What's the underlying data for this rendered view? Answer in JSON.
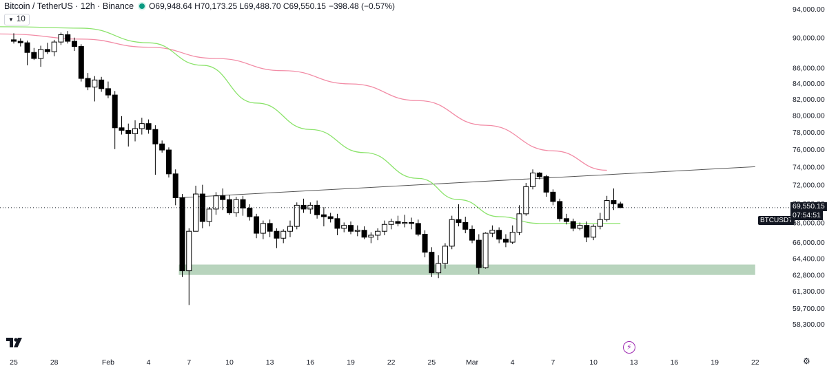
{
  "header": {
    "symbol": "Bitcoin / TetherUS · 12h · Binance",
    "ohlc": "O69,948.64 H70,173.25 L69,488.70 C69,550.15",
    "change": "−398.48 (−0.57%)"
  },
  "indicator": {
    "label": "10"
  },
  "price_tag": {
    "value": "69,550.15",
    "countdown": "07:54:51",
    "symbol": "BTCUSDT"
  },
  "colors": {
    "up_body": "#ffffff",
    "down_body": "#000000",
    "wick": "#000000",
    "ma_fast": "#8be36b",
    "ma_slow": "#f28ca6",
    "zone": "#b8d4bd",
    "trendline": "#555555"
  },
  "chart_data": {
    "type": "candlestick",
    "interval": "12h",
    "y_axis_labels": [
      94000,
      90000,
      86000,
      84000,
      82000,
      80000,
      78000,
      76000,
      74000,
      72000,
      70000,
      68000,
      66000,
      64400,
      62800,
      61300,
      59700,
      58300
    ],
    "y_scale": "log",
    "x_axis_labels": [
      "25",
      "28",
      "Feb",
      "4",
      "7",
      "10",
      "13",
      "16",
      "19",
      "22",
      "25",
      "Mar",
      "4",
      "7",
      "10",
      "13",
      "16",
      "19",
      "22"
    ],
    "x_label_bar_index": [
      0,
      6,
      14,
      20,
      26,
      32,
      38,
      44,
      50,
      56,
      62,
      68,
      74,
      80,
      86,
      92,
      98,
      104,
      110
    ],
    "candles": [
      {
        "o": 89700,
        "h": 90600,
        "l": 89200,
        "c": 89500
      },
      {
        "o": 89500,
        "h": 89900,
        "l": 88800,
        "c": 89300
      },
      {
        "o": 89300,
        "h": 89600,
        "l": 86300,
        "c": 88000
      },
      {
        "o": 88000,
        "h": 88600,
        "l": 87000,
        "c": 87200
      },
      {
        "o": 87200,
        "h": 88900,
        "l": 86100,
        "c": 88400
      },
      {
        "o": 88400,
        "h": 89300,
        "l": 87800,
        "c": 88100
      },
      {
        "o": 88100,
        "h": 89700,
        "l": 87500,
        "c": 89400
      },
      {
        "o": 89400,
        "h": 90700,
        "l": 89000,
        "c": 90400
      },
      {
        "o": 90400,
        "h": 90900,
        "l": 89200,
        "c": 89500
      },
      {
        "o": 89500,
        "h": 90000,
        "l": 88200,
        "c": 88800
      },
      {
        "o": 88800,
        "h": 89100,
        "l": 84200,
        "c": 84600
      },
      {
        "o": 84600,
        "h": 85300,
        "l": 83100,
        "c": 83500
      },
      {
        "o": 83500,
        "h": 84900,
        "l": 81700,
        "c": 84400
      },
      {
        "o": 84400,
        "h": 84800,
        "l": 82900,
        "c": 83300
      },
      {
        "o": 83300,
        "h": 84200,
        "l": 82100,
        "c": 82500
      },
      {
        "o": 82500,
        "h": 83000,
        "l": 76000,
        "c": 78500
      },
      {
        "o": 78500,
        "h": 79900,
        "l": 77700,
        "c": 78200
      },
      {
        "o": 78200,
        "h": 79000,
        "l": 76300,
        "c": 77800
      },
      {
        "o": 77800,
        "h": 79400,
        "l": 76900,
        "c": 78400
      },
      {
        "o": 78400,
        "h": 79700,
        "l": 77700,
        "c": 79000
      },
      {
        "o": 79000,
        "h": 79500,
        "l": 77800,
        "c": 78300
      },
      {
        "o": 78300,
        "h": 78800,
        "l": 73100,
        "c": 76600
      },
      {
        "o": 76600,
        "h": 77000,
        "l": 75600,
        "c": 75900
      },
      {
        "o": 75900,
        "h": 76200,
        "l": 72800,
        "c": 73200
      },
      {
        "o": 73200,
        "h": 73700,
        "l": 69800,
        "c": 70600
      },
      {
        "o": 70600,
        "h": 71000,
        "l": 62600,
        "c": 63200
      },
      {
        "o": 63200,
        "h": 67400,
        "l": 60000,
        "c": 67100
      },
      {
        "o": 67100,
        "h": 71900,
        "l": 67100,
        "c": 71000
      },
      {
        "o": 71000,
        "h": 72000,
        "l": 67400,
        "c": 68100
      },
      {
        "o": 68100,
        "h": 69600,
        "l": 67600,
        "c": 69400
      },
      {
        "o": 69400,
        "h": 71200,
        "l": 68800,
        "c": 70800
      },
      {
        "o": 70800,
        "h": 71600,
        "l": 69300,
        "c": 70400
      },
      {
        "o": 70400,
        "h": 70900,
        "l": 68800,
        "c": 69000
      },
      {
        "o": 69000,
        "h": 70700,
        "l": 68600,
        "c": 70400
      },
      {
        "o": 70400,
        "h": 70800,
        "l": 68700,
        "c": 69500
      },
      {
        "o": 69500,
        "h": 69900,
        "l": 68200,
        "c": 68600
      },
      {
        "o": 68600,
        "h": 68900,
        "l": 66400,
        "c": 66900
      },
      {
        "o": 66900,
        "h": 68200,
        "l": 66300,
        "c": 67900
      },
      {
        "o": 67900,
        "h": 68300,
        "l": 66500,
        "c": 67100
      },
      {
        "o": 67100,
        "h": 67400,
        "l": 65400,
        "c": 66400
      },
      {
        "o": 66400,
        "h": 67300,
        "l": 65900,
        "c": 67100
      },
      {
        "o": 67100,
        "h": 68200,
        "l": 66500,
        "c": 67600
      },
      {
        "o": 67600,
        "h": 70100,
        "l": 67300,
        "c": 69800
      },
      {
        "o": 69800,
        "h": 70500,
        "l": 69000,
        "c": 69400
      },
      {
        "o": 69400,
        "h": 70100,
        "l": 68900,
        "c": 69800
      },
      {
        "o": 69800,
        "h": 70300,
        "l": 68400,
        "c": 68800
      },
      {
        "o": 68800,
        "h": 69600,
        "l": 67600,
        "c": 68600
      },
      {
        "o": 68600,
        "h": 69000,
        "l": 68000,
        "c": 68400
      },
      {
        "o": 68400,
        "h": 68900,
        "l": 66700,
        "c": 67400
      },
      {
        "o": 67400,
        "h": 68000,
        "l": 67000,
        "c": 67700
      },
      {
        "o": 67700,
        "h": 68100,
        "l": 66800,
        "c": 67100
      },
      {
        "o": 67100,
        "h": 67700,
        "l": 66600,
        "c": 67200
      },
      {
        "o": 67200,
        "h": 67600,
        "l": 66300,
        "c": 66500
      },
      {
        "o": 66500,
        "h": 67000,
        "l": 65900,
        "c": 66700
      },
      {
        "o": 66700,
        "h": 67400,
        "l": 66200,
        "c": 67100
      },
      {
        "o": 67100,
        "h": 68200,
        "l": 66700,
        "c": 67800
      },
      {
        "o": 67800,
        "h": 68400,
        "l": 67300,
        "c": 68100
      },
      {
        "o": 68100,
        "h": 68700,
        "l": 67600,
        "c": 67900
      },
      {
        "o": 67900,
        "h": 68800,
        "l": 67500,
        "c": 68000
      },
      {
        "o": 68000,
        "h": 68500,
        "l": 67300,
        "c": 67900
      },
      {
        "o": 67900,
        "h": 68300,
        "l": 66600,
        "c": 66800
      },
      {
        "o": 66800,
        "h": 67200,
        "l": 64500,
        "c": 65000
      },
      {
        "o": 65000,
        "h": 65500,
        "l": 62600,
        "c": 63000
      },
      {
        "o": 63000,
        "h": 64700,
        "l": 62500,
        "c": 63900
      },
      {
        "o": 63900,
        "h": 65900,
        "l": 63400,
        "c": 65600
      },
      {
        "o": 65600,
        "h": 68700,
        "l": 65300,
        "c": 68300
      },
      {
        "o": 68300,
        "h": 69900,
        "l": 67600,
        "c": 68000
      },
      {
        "o": 68000,
        "h": 68600,
        "l": 66900,
        "c": 67300
      },
      {
        "o": 67300,
        "h": 67700,
        "l": 65900,
        "c": 66200
      },
      {
        "o": 66200,
        "h": 66800,
        "l": 62900,
        "c": 63500
      },
      {
        "o": 63500,
        "h": 67000,
        "l": 63400,
        "c": 66900
      },
      {
        "o": 66900,
        "h": 67700,
        "l": 66500,
        "c": 67200
      },
      {
        "o": 67200,
        "h": 67500,
        "l": 65900,
        "c": 66300
      },
      {
        "o": 66300,
        "h": 66800,
        "l": 65500,
        "c": 66000
      },
      {
        "o": 66000,
        "h": 67700,
        "l": 65800,
        "c": 67000
      },
      {
        "o": 67000,
        "h": 69800,
        "l": 66700,
        "c": 68900
      },
      {
        "o": 68900,
        "h": 72200,
        "l": 68700,
        "c": 71800
      },
      {
        "o": 71800,
        "h": 73700,
        "l": 71500,
        "c": 73300
      },
      {
        "o": 73300,
        "h": 73400,
        "l": 72600,
        "c": 72900
      },
      {
        "o": 72900,
        "h": 73100,
        "l": 70700,
        "c": 71200
      },
      {
        "o": 71200,
        "h": 71500,
        "l": 69800,
        "c": 70200
      },
      {
        "o": 70200,
        "h": 70500,
        "l": 68100,
        "c": 68400
      },
      {
        "o": 68400,
        "h": 68900,
        "l": 67800,
        "c": 68100
      },
      {
        "o": 68100,
        "h": 68400,
        "l": 67100,
        "c": 67400
      },
      {
        "o": 67400,
        "h": 68000,
        "l": 67200,
        "c": 67700
      },
      {
        "o": 67700,
        "h": 68100,
        "l": 66000,
        "c": 66500
      },
      {
        "o": 66500,
        "h": 67800,
        "l": 66200,
        "c": 67600
      },
      {
        "o": 67600,
        "h": 69000,
        "l": 67300,
        "c": 68300
      },
      {
        "o": 68300,
        "h": 70800,
        "l": 68100,
        "c": 70300
      },
      {
        "o": 70300,
        "h": 71600,
        "l": 69300,
        "c": 69950
      },
      {
        "o": 69950,
        "h": 70173,
        "l": 69489,
        "c": 69550
      }
    ],
    "ma_fast": [
      {
        "i": 0,
        "v": 91500
      },
      {
        "i": 10,
        "v": 91300
      },
      {
        "i": 20,
        "v": 89300
      },
      {
        "i": 28,
        "v": 86300
      },
      {
        "i": 36,
        "v": 81500
      },
      {
        "i": 44,
        "v": 78300
      },
      {
        "i": 52,
        "v": 75600
      },
      {
        "i": 60,
        "v": 72700
      },
      {
        "i": 66,
        "v": 70400
      },
      {
        "i": 72,
        "v": 68600
      },
      {
        "i": 78,
        "v": 67900
      },
      {
        "i": 90,
        "v": 67900
      }
    ],
    "ma_slow": [
      {
        "i": 0,
        "v": 90500
      },
      {
        "i": 10,
        "v": 89800
      },
      {
        "i": 20,
        "v": 88700
      },
      {
        "i": 30,
        "v": 87200
      },
      {
        "i": 40,
        "v": 85600
      },
      {
        "i": 50,
        "v": 83900
      },
      {
        "i": 60,
        "v": 81800
      },
      {
        "i": 70,
        "v": 78800
      },
      {
        "i": 80,
        "v": 75800
      },
      {
        "i": 88,
        "v": 73600
      }
    ],
    "trendline": [
      {
        "i": 25,
        "v": 70600
      },
      {
        "i": 110,
        "v": 74000
      }
    ],
    "support_zone": {
      "from_i": 25,
      "to_i": 110,
      "low": 62800,
      "high": 63800
    },
    "last_price": 69550.15
  }
}
